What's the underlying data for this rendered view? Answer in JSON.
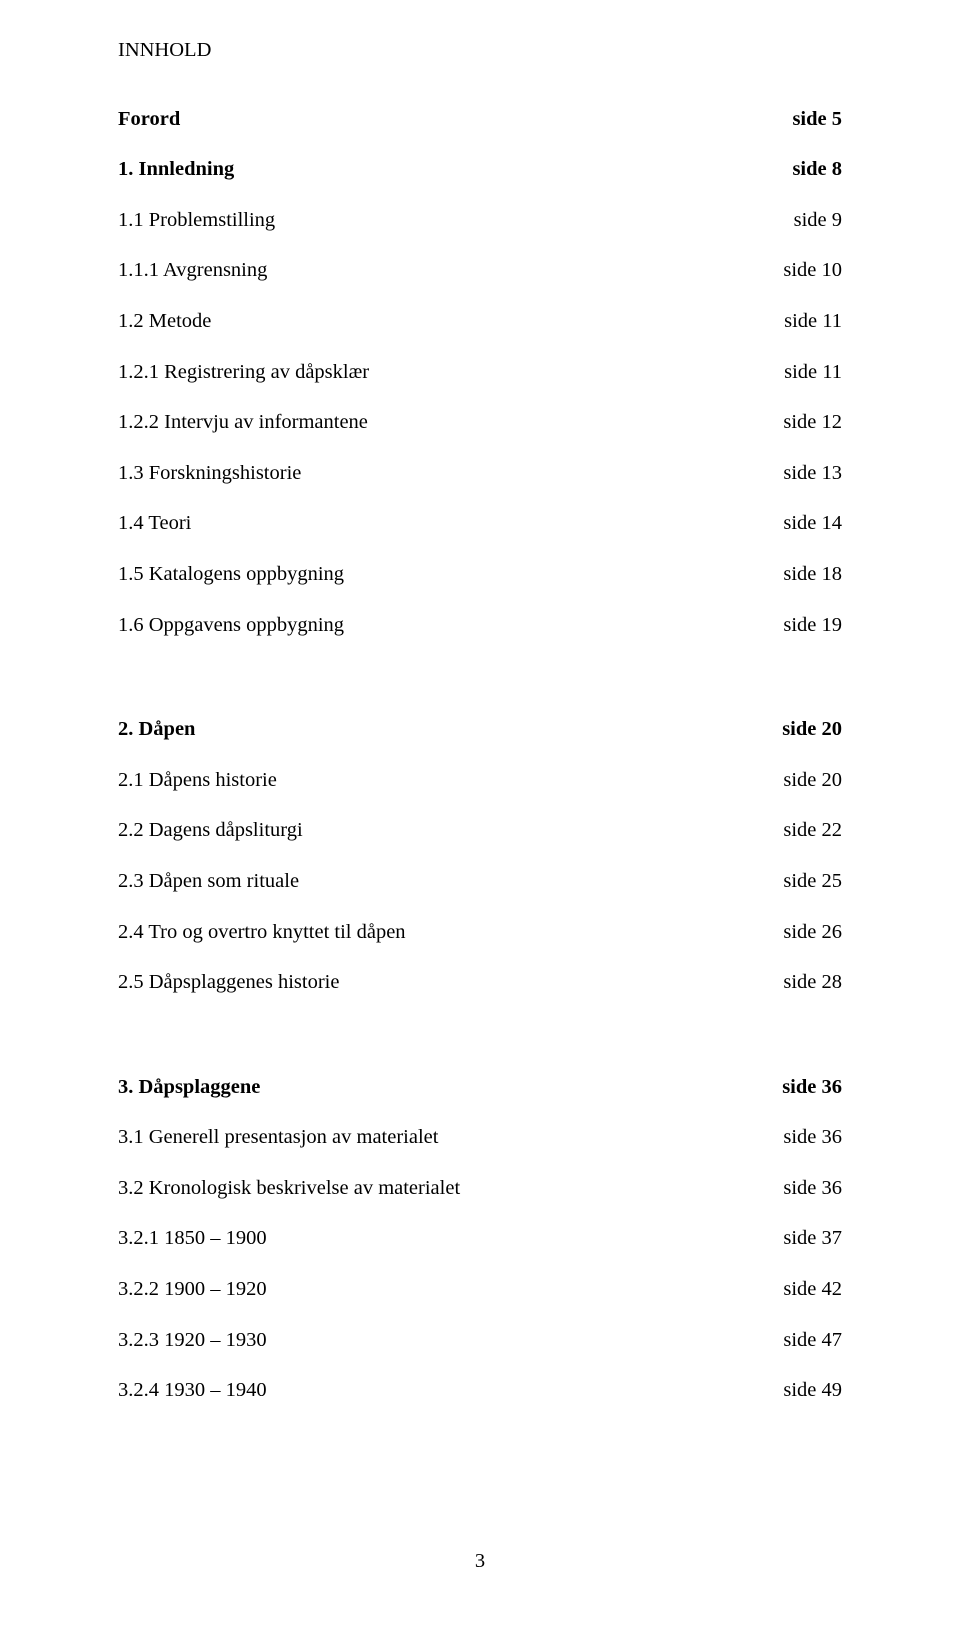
{
  "heading": "INNHOLD",
  "rows": [
    {
      "left": "Forord",
      "right": "side 5",
      "bold": true
    },
    {
      "left": "1. Innledning",
      "right": "side 8",
      "bold": true
    },
    {
      "left": "1.1 Problemstilling",
      "right": "side 9",
      "bold": false
    },
    {
      "left": "1.1.1 Avgrensning",
      "right": "side 10",
      "bold": false
    },
    {
      "left": "1.2 Metode",
      "right": "side 11",
      "bold": false
    },
    {
      "left": "1.2.1 Registrering av dåpsklær",
      "right": "side 11",
      "bold": false
    },
    {
      "left": "1.2.2 Intervju av informantene",
      "right": "side 12",
      "bold": false
    },
    {
      "left": "1.3 Forskningshistorie",
      "right": "side 13",
      "bold": false
    },
    {
      "left": "1.4 Teori",
      "right": "side 14",
      "bold": false
    },
    {
      "left": "1.5 Katalogens oppbygning",
      "right": "side 18",
      "bold": false
    },
    {
      "left": "1.6 Oppgavens oppbygning",
      "right": "side 19",
      "bold": false
    },
    {
      "gap": true
    },
    {
      "left": "2. Dåpen",
      "right": "side 20",
      "bold": true
    },
    {
      "left": "2.1 Dåpens historie",
      "right": "side 20",
      "bold": false
    },
    {
      "left": "2.2 Dagens dåpsliturgi",
      "right": "side 22",
      "bold": false
    },
    {
      "left": "2.3 Dåpen som rituale",
      "right": "side 25",
      "bold": false
    },
    {
      "left": "2.4 Tro og overtro knyttet til dåpen",
      "right": "side 26",
      "bold": false
    },
    {
      "left": "2.5 Dåpsplaggenes historie",
      "right": "side 28",
      "bold": false
    },
    {
      "gap": true
    },
    {
      "left": "3. Dåpsplaggene",
      "right": "side 36",
      "bold": true
    },
    {
      "left": "3.1 Generell presentasjon av materialet",
      "right": "side 36",
      "bold": false
    },
    {
      "left": "3.2 Kronologisk beskrivelse av materialet",
      "right": "side 36",
      "bold": false
    },
    {
      "left": "3.2.1 1850 – 1900",
      "right": "side 37",
      "bold": false
    },
    {
      "left": "3.2.2 1900 – 1920",
      "right": "side 42",
      "bold": false
    },
    {
      "left": "3.2.3 1920 – 1930",
      "right": "side 47",
      "bold": false
    },
    {
      "left": "3.2.4 1930 – 1940",
      "right": "side 49",
      "bold": false
    }
  ],
  "page_number": "3"
}
